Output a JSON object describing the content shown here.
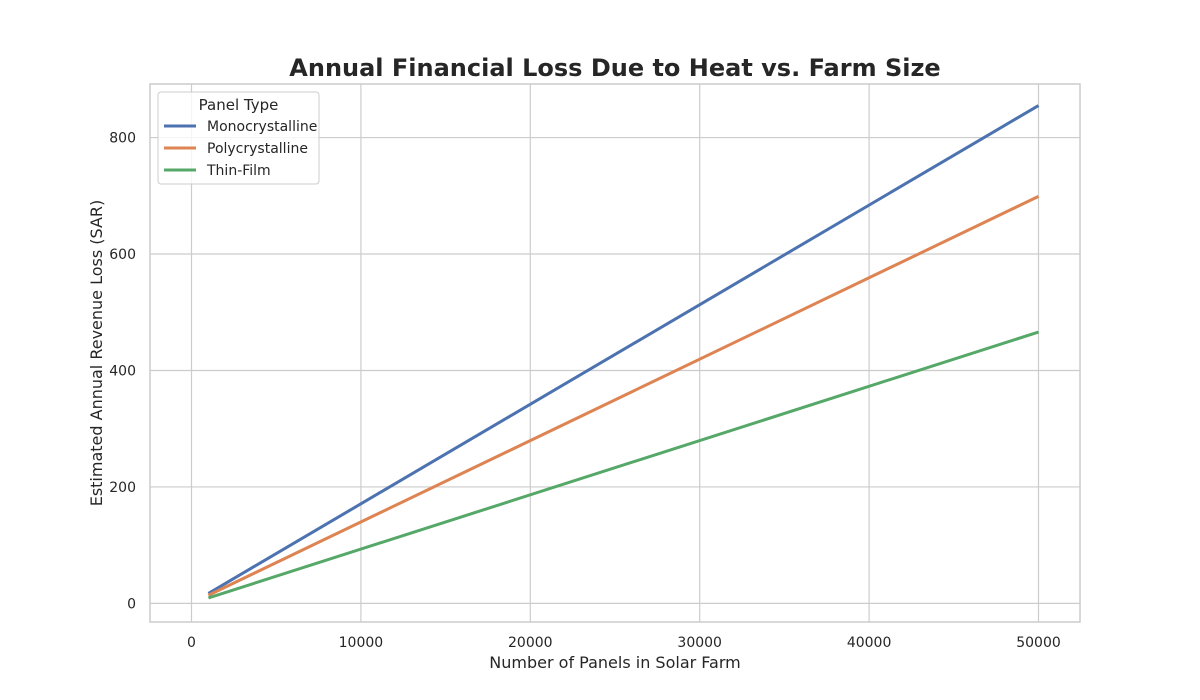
{
  "chart_data": {
    "type": "line",
    "title": "Annual Financial Loss Due to Heat vs. Farm Size",
    "xlabel": "Number of Panels in Solar Farm",
    "ylabel": "Estimated Annual Revenue Loss (SAR)",
    "xlim": [
      -2450,
      52450
    ],
    "ylim": [
      -32,
      892
    ],
    "xticks": [
      0,
      10000,
      20000,
      30000,
      40000,
      50000
    ],
    "yticks": [
      0,
      200,
      400,
      600,
      800
    ],
    "grid": true,
    "legend": {
      "title": "Panel Type",
      "placement": "top-left"
    },
    "x": [
      1000,
      50000
    ],
    "series": [
      {
        "name": "Monocrystalline",
        "color": "#4c72b0",
        "values": [
          17.1,
          855
        ]
      },
      {
        "name": "Polycrystalline",
        "color": "#dd8452",
        "values": [
          14.0,
          699
        ]
      },
      {
        "name": "Thin-Film",
        "color": "#55a868",
        "values": [
          9.3,
          466
        ]
      }
    ]
  }
}
